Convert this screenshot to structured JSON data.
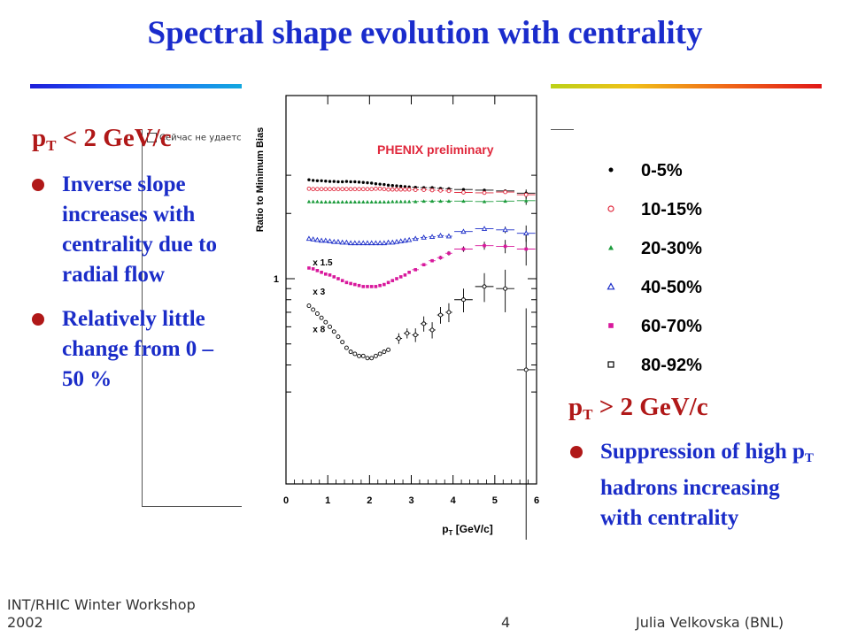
{
  "slide": {
    "title": "Spectral shape evolution with centrality",
    "left_heading": {
      "p": "p",
      "sub": "T",
      "rest": " < 2 GeV/c"
    },
    "left_bullets": [
      "Inverse slope increases with centrality due to radial flow",
      "Relatively little change from 0 – 50 %"
    ],
    "right_heading": {
      "p": "p",
      "sub": "T",
      "rest": " > 2 GeV/c"
    },
    "right_bullet": {
      "part1": "Suppression of high p",
      "sub": "T",
      "part2": " hadrons increasing with centrality"
    },
    "broken_image_text": "Сейчас не удается",
    "footer": {
      "left_line1": "INT/RHIC Winter Workshop",
      "left_line2": "2002",
      "page": "4",
      "right": "Julia Velkovska (BNL)"
    },
    "colors": {
      "title": "#1a2ccc",
      "heading": "#b01818",
      "bullets": "#1a2cc8",
      "chart_label": "#e0283c"
    }
  },
  "chart_data": {
    "type": "scatter",
    "title": "PHENIX preliminary",
    "ylabel": "Ratio to Minimum Bias",
    "xlabel_p": "p",
    "xlabel_sub": "T",
    "xlabel_rest": " [GeV/c]",
    "xlim": [
      0,
      6
    ],
    "x_ticks": [
      "0",
      "1",
      "2",
      "3",
      "4",
      "5",
      "6"
    ],
    "y_scale": "log",
    "y_tick_label": "1",
    "legend_position": "right",
    "series": [
      {
        "name": "0-5%",
        "marker": "dot",
        "color": "#000000",
        "scale_label": "",
        "x": [
          0.55,
          0.65,
          0.75,
          0.85,
          0.95,
          1.05,
          1.15,
          1.25,
          1.35,
          1.45,
          1.55,
          1.65,
          1.75,
          1.85,
          1.95,
          2.05,
          2.15,
          2.25,
          2.35,
          2.45,
          2.55,
          2.65,
          2.75,
          2.85,
          2.95,
          3.1,
          3.3,
          3.5,
          3.7,
          3.9,
          4.25,
          4.75,
          5.25,
          5.75
        ],
        "y": [
          2.86,
          2.84,
          2.83,
          2.83,
          2.82,
          2.81,
          2.81,
          2.8,
          2.8,
          2.81,
          2.8,
          2.8,
          2.79,
          2.78,
          2.77,
          2.76,
          2.74,
          2.73,
          2.72,
          2.7,
          2.69,
          2.68,
          2.67,
          2.66,
          2.65,
          2.64,
          2.63,
          2.63,
          2.61,
          2.6,
          2.58,
          2.56,
          2.54,
          2.48
        ],
        "yerr": [
          0,
          0,
          0,
          0,
          0,
          0,
          0,
          0,
          0,
          0,
          0,
          0,
          0,
          0,
          0,
          0,
          0,
          0,
          0,
          0,
          0,
          0,
          0,
          0,
          0,
          0.008,
          0.008,
          0.008,
          0.008,
          0.01,
          0.012,
          0.02,
          0.035,
          0.1
        ]
      },
      {
        "name": "10-15%",
        "marker": "circle",
        "color": "#e0283c",
        "scale_label": "",
        "x": [
          0.55,
          0.65,
          0.75,
          0.85,
          0.95,
          1.05,
          1.15,
          1.25,
          1.35,
          1.45,
          1.55,
          1.65,
          1.75,
          1.85,
          1.95,
          2.05,
          2.15,
          2.25,
          2.35,
          2.45,
          2.55,
          2.65,
          2.75,
          2.85,
          2.95,
          3.1,
          3.3,
          3.5,
          3.7,
          3.9,
          4.25,
          4.75,
          5.25,
          5.75
        ],
        "y": [
          2.6,
          2.59,
          2.59,
          2.59,
          2.59,
          2.59,
          2.59,
          2.59,
          2.59,
          2.59,
          2.59,
          2.59,
          2.59,
          2.59,
          2.59,
          2.59,
          2.6,
          2.6,
          2.59,
          2.58,
          2.58,
          2.58,
          2.58,
          2.58,
          2.58,
          2.57,
          2.57,
          2.56,
          2.55,
          2.54,
          2.5,
          2.49,
          2.51,
          2.44
        ],
        "yerr": [
          0,
          0,
          0,
          0,
          0,
          0,
          0,
          0,
          0,
          0,
          0,
          0,
          0,
          0,
          0,
          0,
          0,
          0,
          0,
          0,
          0,
          0,
          0,
          0,
          0,
          0.008,
          0.008,
          0.008,
          0.008,
          0.01,
          0.012,
          0.02,
          0.035,
          0.1
        ]
      },
      {
        "name": "20-30%",
        "marker": "triangle",
        "color": "#1c9c3c",
        "scale_label": "",
        "x": [
          0.55,
          0.65,
          0.75,
          0.85,
          0.95,
          1.05,
          1.15,
          1.25,
          1.35,
          1.45,
          1.55,
          1.65,
          1.75,
          1.85,
          1.95,
          2.05,
          2.15,
          2.25,
          2.35,
          2.45,
          2.55,
          2.65,
          2.75,
          2.85,
          2.95,
          3.1,
          3.3,
          3.5,
          3.7,
          3.9,
          4.25,
          4.75,
          5.25,
          5.75
        ],
        "y": [
          2.27,
          2.27,
          2.27,
          2.26,
          2.26,
          2.26,
          2.26,
          2.26,
          2.26,
          2.26,
          2.26,
          2.26,
          2.26,
          2.26,
          2.26,
          2.26,
          2.26,
          2.26,
          2.26,
          2.26,
          2.27,
          2.27,
          2.27,
          2.27,
          2.27,
          2.27,
          2.28,
          2.28,
          2.28,
          2.28,
          2.28,
          2.27,
          2.28,
          2.29
        ],
        "yerr": [
          0,
          0,
          0,
          0,
          0,
          0,
          0,
          0,
          0,
          0,
          0,
          0,
          0,
          0,
          0,
          0,
          0,
          0,
          0,
          0,
          0,
          0,
          0,
          0,
          0,
          0.008,
          0.008,
          0.008,
          0.008,
          0.01,
          0.012,
          0.02,
          0.035,
          0.1
        ]
      },
      {
        "name": "40-50%",
        "marker": "triangle-open",
        "color": "#1a2cc8",
        "scale_label": "x 1.5",
        "x": [
          0.55,
          0.65,
          0.75,
          0.85,
          0.95,
          1.05,
          1.15,
          1.25,
          1.35,
          1.45,
          1.55,
          1.65,
          1.75,
          1.85,
          1.95,
          2.05,
          2.15,
          2.25,
          2.35,
          2.45,
          2.55,
          2.65,
          2.75,
          2.85,
          2.95,
          3.1,
          3.3,
          3.5,
          3.7,
          3.9,
          4.25,
          4.75,
          5.25,
          5.75
        ],
        "y": [
          1.53,
          1.52,
          1.51,
          1.5,
          1.5,
          1.49,
          1.48,
          1.48,
          1.47,
          1.47,
          1.46,
          1.46,
          1.46,
          1.46,
          1.46,
          1.46,
          1.46,
          1.46,
          1.46,
          1.47,
          1.47,
          1.48,
          1.49,
          1.5,
          1.51,
          1.53,
          1.55,
          1.56,
          1.58,
          1.57,
          1.65,
          1.7,
          1.68,
          1.62
        ],
        "yerr": [
          0,
          0,
          0,
          0,
          0,
          0,
          0,
          0,
          0,
          0,
          0,
          0,
          0,
          0,
          0,
          0,
          0,
          0,
          0,
          0,
          0,
          0,
          0,
          0,
          0,
          0.01,
          0.01,
          0.01,
          0.012,
          0.015,
          0.02,
          0.03,
          0.06,
          0.14
        ]
      },
      {
        "name": "60-70%",
        "marker": "square",
        "color": "#d8189c",
        "scale_label": "x 3",
        "x": [
          0.55,
          0.65,
          0.75,
          0.85,
          0.95,
          1.05,
          1.15,
          1.25,
          1.35,
          1.45,
          1.55,
          1.65,
          1.75,
          1.85,
          1.95,
          2.05,
          2.15,
          2.25,
          2.35,
          2.45,
          2.55,
          2.65,
          2.75,
          2.85,
          2.95,
          3.1,
          3.3,
          3.5,
          3.7,
          3.9,
          4.25,
          4.75,
          5.25,
          5.75
        ],
        "y": [
          1.12,
          1.11,
          1.09,
          1.07,
          1.05,
          1.04,
          1.02,
          1.0,
          0.98,
          0.96,
          0.95,
          0.94,
          0.93,
          0.92,
          0.92,
          0.92,
          0.92,
          0.93,
          0.94,
          0.96,
          0.98,
          1.0,
          1.02,
          1.04,
          1.07,
          1.1,
          1.16,
          1.21,
          1.25,
          1.31,
          1.37,
          1.42,
          1.41,
          1.37
        ],
        "yerr": [
          0,
          0,
          0,
          0,
          0,
          0,
          0,
          0,
          0,
          0,
          0,
          0,
          0,
          0,
          0,
          0,
          0,
          0,
          0,
          0,
          0,
          0,
          0,
          0,
          0,
          0.015,
          0.015,
          0.02,
          0.025,
          0.03,
          0.04,
          0.06,
          0.1,
          0.22
        ]
      },
      {
        "name": "80-92%",
        "marker": "square-open",
        "color": "#000000",
        "scale_label": "x 8",
        "x": [
          0.55,
          0.65,
          0.75,
          0.85,
          0.95,
          1.05,
          1.15,
          1.25,
          1.35,
          1.45,
          1.55,
          1.65,
          1.75,
          1.85,
          1.95,
          2.05,
          2.15,
          2.25,
          2.35,
          2.45,
          2.7,
          2.9,
          3.1,
          3.3,
          3.5,
          3.7,
          3.9,
          4.25,
          4.75,
          5.25,
          5.75
        ],
        "y": [
          0.75,
          0.72,
          0.69,
          0.66,
          0.63,
          0.6,
          0.57,
          0.54,
          0.51,
          0.48,
          0.46,
          0.45,
          0.44,
          0.44,
          0.43,
          0.43,
          0.44,
          0.45,
          0.46,
          0.47,
          0.53,
          0.56,
          0.55,
          0.62,
          0.58,
          0.68,
          0.7,
          0.8,
          0.92,
          0.9,
          0.38
        ],
        "yerr": [
          0,
          0,
          0,
          0,
          0,
          0,
          0,
          0,
          0,
          0,
          0,
          0,
          0,
          0,
          0,
          0,
          0,
          0,
          0,
          0,
          0.03,
          0.03,
          0.04,
          0.05,
          0.05,
          0.06,
          0.07,
          0.1,
          0.14,
          0.2,
          0.35
        ]
      }
    ]
  }
}
